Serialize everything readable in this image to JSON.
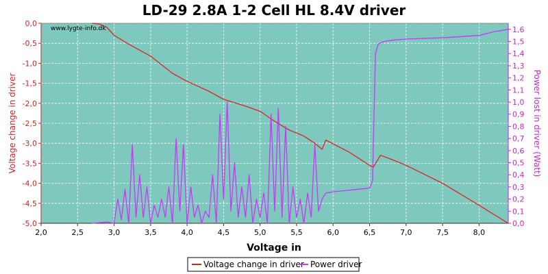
{
  "chart_data": {
    "type": "line",
    "title": "LD-29 2.8A 1-2 Cell HL 8.4V driver",
    "watermark": "www.lygte-info.dk",
    "xlabel": "Voltage in",
    "ylabel_left": "Voltage change in driver",
    "ylabel_right": "Power lost in driver (Watt)",
    "xlim": [
      2.0,
      8.4
    ],
    "ylim_left": [
      -5.0,
      0.0
    ],
    "ylim_right": [
      0.0,
      1.65
    ],
    "x_ticks": [
      "2,0",
      "2,5",
      "3,0",
      "3,5",
      "4,0",
      "4,5",
      "5,0",
      "5,5",
      "6,0",
      "6,5",
      "7,0",
      "7,5",
      "8,0"
    ],
    "y_left_ticks": [
      "0,0",
      "-0,5",
      "-1,0",
      "-1,5",
      "-2,0",
      "-2,5",
      "-3,0",
      "-3,5",
      "-4,0",
      "-4,5",
      "-5,0"
    ],
    "y_right_ticks": [
      "0,0",
      "0,1",
      "0,2",
      "0,3",
      "0,4",
      "0,5",
      "0,6",
      "0,7",
      "0,8",
      "0,9",
      "1,0",
      "1,1",
      "1,2",
      "1,3",
      "1,4",
      "1,5",
      "1,6"
    ],
    "grid": true,
    "legend_position": "bottom-center",
    "background": "#7fc8bd",
    "colors": {
      "voltage": "#e0201f",
      "power": "#cc33ff",
      "left_axis": "#d02020",
      "right_axis": "#cc22cc"
    },
    "series": [
      {
        "name": "Voltage change in driver",
        "axis": "left",
        "color": "#e0201f",
        "x": [
          2.7,
          2.8,
          2.9,
          3.0,
          3.2,
          3.5,
          3.8,
          4.0,
          4.3,
          4.5,
          4.8,
          5.0,
          5.2,
          5.4,
          5.6,
          5.75,
          5.85,
          5.9,
          6.2,
          6.5,
          6.55,
          6.65,
          6.8,
          7.0,
          7.5,
          8.0,
          8.4
        ],
        "y": [
          0.0,
          -0.02,
          -0.1,
          -0.3,
          -0.52,
          -0.82,
          -1.25,
          -1.45,
          -1.7,
          -1.9,
          -2.07,
          -2.2,
          -2.45,
          -2.67,
          -2.82,
          -3.0,
          -3.15,
          -2.92,
          -3.2,
          -3.55,
          -3.6,
          -3.3,
          -3.4,
          -3.55,
          -4.0,
          -4.55,
          -5.0
        ]
      },
      {
        "name": "Power driver",
        "axis": "right",
        "color": "#cc33ff",
        "x": [
          2.7,
          2.9,
          3.0,
          3.05,
          3.1,
          3.15,
          3.2,
          3.25,
          3.3,
          3.35,
          3.4,
          3.45,
          3.5,
          3.55,
          3.6,
          3.65,
          3.7,
          3.75,
          3.8,
          3.85,
          3.9,
          3.95,
          4.0,
          4.05,
          4.1,
          4.15,
          4.2,
          4.25,
          4.3,
          4.35,
          4.4,
          4.45,
          4.5,
          4.55,
          4.6,
          4.65,
          4.7,
          4.75,
          4.8,
          4.85,
          4.9,
          4.95,
          5.0,
          5.05,
          5.1,
          5.15,
          5.2,
          5.25,
          5.3,
          5.35,
          5.4,
          5.45,
          5.5,
          5.55,
          5.6,
          5.65,
          5.7,
          5.75,
          5.8,
          5.85,
          5.9,
          6.0,
          6.5,
          6.54,
          6.58,
          6.62,
          6.7,
          6.8,
          7.0,
          7.5,
          8.0,
          8.2,
          8.4
        ],
        "y": [
          0.0,
          0.01,
          0.0,
          0.2,
          0.03,
          0.28,
          0.0,
          0.65,
          0.05,
          0.4,
          0.05,
          0.3,
          0.0,
          0.15,
          0.05,
          0.2,
          0.05,
          0.3,
          0.0,
          0.7,
          0.1,
          0.65,
          0.0,
          0.3,
          0.05,
          0.15,
          0.0,
          0.1,
          0.05,
          0.4,
          0.0,
          0.9,
          0.2,
          1.0,
          0.1,
          0.5,
          0.05,
          0.3,
          0.05,
          0.4,
          0.0,
          0.2,
          0.05,
          0.25,
          0.0,
          0.9,
          0.1,
          0.95,
          0.05,
          0.8,
          0.0,
          0.3,
          0.05,
          0.2,
          0.0,
          0.25,
          0.05,
          0.65,
          0.1,
          0.2,
          0.25,
          0.26,
          0.29,
          0.35,
          1.4,
          1.48,
          1.5,
          1.51,
          1.52,
          1.53,
          1.55,
          1.58,
          1.6
        ]
      }
    ]
  }
}
